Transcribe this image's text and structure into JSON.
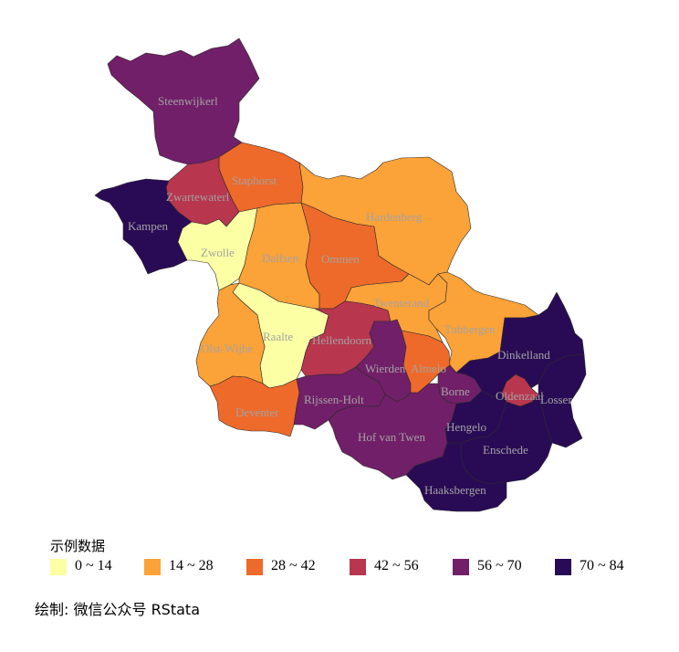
{
  "legend": {
    "title": "示例数据",
    "items": [
      {
        "label": "0 ~ 14",
        "color": "#FCFFA4"
      },
      {
        "label": "14 ~ 28",
        "color": "#FBA238"
      },
      {
        "label": "28 ~ 42",
        "color": "#EE6A2A"
      },
      {
        "label": "42 ~ 56",
        "color": "#B8364E"
      },
      {
        "label": "56 ~ 70",
        "color": "#711F68"
      },
      {
        "label": "70 ~ 84",
        "color": "#290B55"
      }
    ]
  },
  "regions": [
    {
      "label": "Steenwijkerl",
      "bin": 4
    },
    {
      "label": "Staphorst",
      "bin": 2
    },
    {
      "label": "Zwartewaterl",
      "bin": 3
    },
    {
      "label": "Kampen",
      "bin": 5
    },
    {
      "label": "Zwolle",
      "bin": 0
    },
    {
      "label": "Dalfsen",
      "bin": 1
    },
    {
      "label": "Ommen",
      "bin": 2
    },
    {
      "label": "Hardenberg",
      "bin": 1
    },
    {
      "label": "Twenterand",
      "bin": 1
    },
    {
      "label": "Tubbergen",
      "bin": 1
    },
    {
      "label": "Dinkelland",
      "bin": 5
    },
    {
      "label": "Raalte",
      "bin": 0
    },
    {
      "label": "Olst-Wijhe",
      "bin": 1
    },
    {
      "label": "Hellendoorn",
      "bin": 3
    },
    {
      "label": "Wierden",
      "bin": 4
    },
    {
      "label": "Almelo",
      "bin": 2
    },
    {
      "label": "Borne",
      "bin": 4
    },
    {
      "label": "Oldenzaal",
      "bin": 3
    },
    {
      "label": "Losser",
      "bin": 5
    },
    {
      "label": "Deventer",
      "bin": 2
    },
    {
      "label": "Rijssen-Holt",
      "bin": 4
    },
    {
      "label": "Hof van Twen",
      "bin": 4
    },
    {
      "label": "Hengelo",
      "bin": 5
    },
    {
      "label": "Enschede",
      "bin": 5
    },
    {
      "label": "Haaksbergen",
      "bin": 5
    }
  ],
  "caption": "绘制: 微信公众号 RStata"
}
